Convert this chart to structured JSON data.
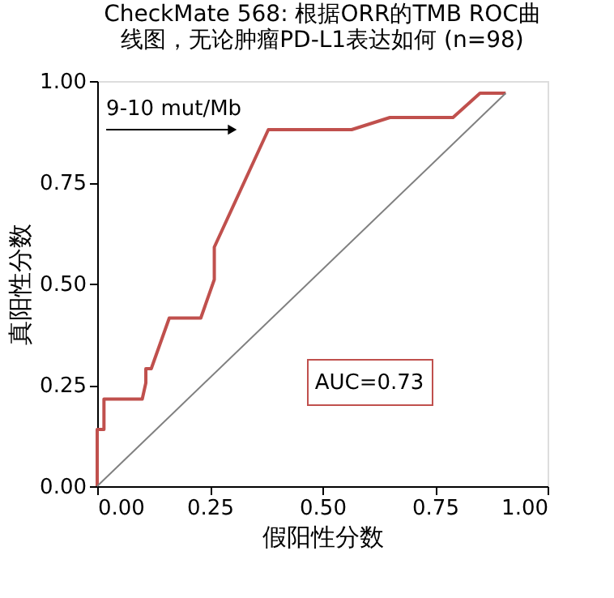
{
  "chart_data": {
    "type": "line",
    "title": [
      "CheckMate 568: 根据ORR的TMB ROC曲",
      "线图，无论肿瘤PD-L1表达如何 (n=98)"
    ],
    "xlabel": "假阳性分数",
    "ylabel": "真阳性分数",
    "xlim": [
      0,
      1
    ],
    "ylim": [
      0,
      1
    ],
    "xticks": [
      {
        "value": 0,
        "label": "0.00"
      },
      {
        "value": 0.25,
        "label": "0.25"
      },
      {
        "value": 0.5,
        "label": "0.50"
      },
      {
        "value": 0.75,
        "label": "0.75"
      },
      {
        "value": 1,
        "label": "1.00"
      }
    ],
    "yticks": [
      {
        "value": 0,
        "label": "0.00"
      },
      {
        "value": 0.25,
        "label": "0.25"
      },
      {
        "value": 0.5,
        "label": "0.50"
      },
      {
        "value": 0.75,
        "label": "0.75"
      },
      {
        "value": 1,
        "label": "1.00"
      }
    ],
    "series": [
      {
        "color": "#c0504d",
        "x": [
          0,
          0,
          0.015,
          0.015,
          0.1,
          0.108,
          0.108,
          0.12,
          0.16,
          0.23,
          0.26,
          0.26,
          0.38,
          0.565,
          0.65,
          0.79,
          0.85,
          0.907
        ],
        "values": [
          0,
          0.14,
          0.14,
          0.215,
          0.215,
          0.255,
          0.29,
          0.29,
          0.415,
          0.415,
          0.51,
          0.59,
          0.88,
          0.88,
          0.91,
          0.91,
          0.97,
          0.97
        ]
      },
      {
        "color": "#808080",
        "x": [
          0,
          0.907
        ],
        "values": [
          0,
          0.97
        ]
      }
    ],
    "annotations": [
      {
        "text": "9-10 mut/Mb",
        "x": 0.3,
        "y": 0.88
      },
      "AUC=0.73"
    ],
    "grid": false,
    "marker": "none",
    "line_style": "solid"
  }
}
